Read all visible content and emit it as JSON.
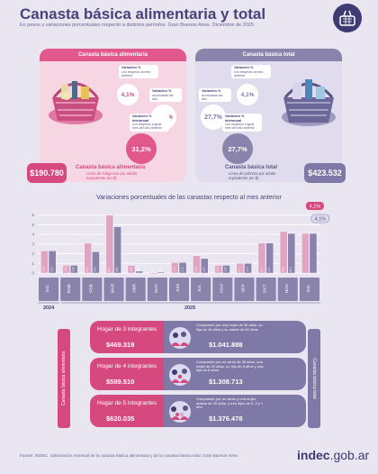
{
  "header": {
    "title": "Canasta básica alimentaria y total",
    "subtitle": "En pesos y variaciones porcentuales respecto a distintos períodos. Gran Buenos Aires. Diciembre de 2025"
  },
  "cba": {
    "panel_title": "Canasta básica alimentaria",
    "var_mensual": "4,1%",
    "var_mensual_title": "Variación %",
    "var_mensual_note": "con respecto al mes anterior",
    "var_acumulada": "31,2%",
    "var_acumulada_title": "Variación %",
    "var_acumulada_note": "acumulada del año",
    "var_interanual": "31,2%",
    "var_interanual_title": "Variación % interanual",
    "var_interanual_note": "con respecto a igual mes del año anterior",
    "price": "$190.780",
    "label": "Canasta básica alimentaria",
    "sub": "Línea de indigencia por adulto equivalente (en $)",
    "color": "#d6497e"
  },
  "cbt": {
    "panel_title": "Canasta básica total",
    "var_mensual": "4,1%",
    "var_mensual_title": "Variación %",
    "var_mensual_note": "con respecto al mes anterior",
    "var_acumulada": "27,7%",
    "var_acumulada_title": "Variación %",
    "var_acumulada_note": "acumulada del año",
    "var_interanual": "27,7%",
    "var_interanual_title": "Variación % interanual",
    "var_interanual_note": "con respecto a igual mes del año anterior",
    "price": "$423.532",
    "label": "Canasta básica total",
    "sub": "Línea de pobreza por adulto equivalente (en $)",
    "color": "#7e79a6"
  },
  "chart_data": {
    "type": "bar",
    "title": "Variaciones porcentuales de las canastas respecto al mes anterior",
    "categories": [
      "DIC",
      "ENE",
      "FEB",
      "MAR",
      "ABR",
      "MAY",
      "JUN",
      "JUL",
      "AGO",
      "SEP",
      "OCT",
      "NOV",
      "DIC"
    ],
    "year_labels": [
      "2024",
      "2025"
    ],
    "ylim": [
      0,
      7
    ],
    "yticks": [
      0,
      1,
      2,
      3,
      4,
      5,
      6
    ],
    "series": [
      {
        "name": "Canasta básica alimentaria",
        "color": "#e0a5c2",
        "values": [
          2.3,
          0.8,
          3.1,
          6.0,
          0.8,
          -0.1,
          1.1,
          1.8,
          0.8,
          1.0,
          3.1,
          4.3,
          4.1
        ]
      },
      {
        "name": "Canasta básica total",
        "color": "#8a84ad",
        "values": [
          2.3,
          0.8,
          2.2,
          4.8,
          0.2,
          0.1,
          1.1,
          1.5,
          0.8,
          1.0,
          3.1,
          4.1,
          4.1
        ]
      }
    ],
    "value_labels": [
      [
        "2.3",
        "0.8",
        "3.1",
        "6.0",
        "0.8",
        "-0.1",
        "1.1",
        "1.8",
        "0.8",
        "1.0",
        "3.1",
        "4.3",
        "4,1%"
      ],
      [
        "2.3",
        "0.8",
        "2.2",
        "4.8",
        "0.2",
        "0.1",
        "1.1",
        "1.5",
        "0.8",
        "1.0",
        "3.1",
        "4.1",
        "4,1%"
      ]
    ]
  },
  "households": [
    {
      "name": "Hogar de 3 integrantes",
      "cba": "$469.319",
      "desc": "Compuesto por una mujer de 35 años, su hija de 18 años y su madre de 61 años",
      "cbt": "$1.041.888"
    },
    {
      "name": "Hogar de 4 integrantes",
      "cba": "$589.510",
      "desc": "Compuesto por un varón de 35 años, una mujer de 31 años, un hijo de 6 años y una hija de 8 años",
      "cbt": "$1.308.713"
    },
    {
      "name": "Hogar de 5 integrantes",
      "cba": "$620.035",
      "desc": "Compuesto por un varón y una mujer, ambos de 30 años, y tres hijos de 5, 3 y 1 año",
      "cbt": "$1.376.478"
    }
  ],
  "side_labels": {
    "left": "Canasta básica alimentaria",
    "right": "Canasta básica total"
  },
  "footer": {
    "source": "Fuente: INDEC. Valorización mensual de la canasta básica alimentaria y de la canasta básica total. Gran Buenos Aires.",
    "logo_a": "indec",
    "logo_b": ".gob.ar"
  }
}
